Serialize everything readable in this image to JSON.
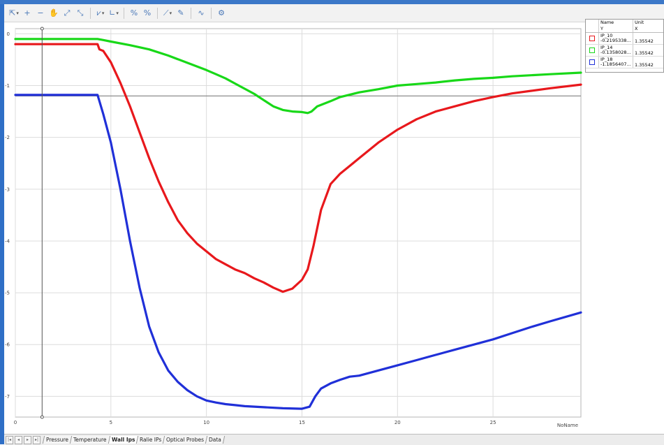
{
  "toolbar": {
    "buttons": [
      {
        "icon": "cursor-select-icon",
        "glyph": "⇱",
        "dropdown": true
      },
      {
        "icon": "zoom-in-icon",
        "glyph": "+"
      },
      {
        "icon": "zoom-out-icon",
        "glyph": "−"
      },
      {
        "icon": "pan-hand-icon",
        "glyph": "✋"
      },
      {
        "icon": "zoom-box-icon",
        "glyph": "⤢"
      },
      {
        "icon": "zoom-extents-icon",
        "glyph": "⤡"
      },
      {
        "icon": "chart-type-icon",
        "glyph": "⩗",
        "dropdown": true
      },
      {
        "icon": "axes-icon",
        "glyph": "∟",
        "dropdown": true
      },
      {
        "icon": "marker-icon",
        "glyph": "%"
      },
      {
        "icon": "marker-remove-icon",
        "glyph": "%"
      },
      {
        "icon": "cursor-line-icon",
        "glyph": "⟋",
        "dropdown": true
      },
      {
        "icon": "cursor-pen-icon",
        "glyph": "✎"
      },
      {
        "icon": "curve-fit-icon",
        "glyph": "∿"
      },
      {
        "icon": "settings-icon",
        "glyph": "⚙"
      }
    ]
  },
  "legend": {
    "headers": {
      "name": "Name",
      "unit": "Unit",
      "y": "Y",
      "x": "X"
    },
    "entries": [
      {
        "name": "IP_10",
        "value": "-0.2195338...",
        "x": "1.35542",
        "color": "#e8181c"
      },
      {
        "name": "IP_14",
        "value": "-0.1358028...",
        "x": "1.35542",
        "color": "#18d818"
      },
      {
        "name": "IP_18",
        "value": "-1.1856407...",
        "x": "1.35542",
        "color": "#2030d8"
      }
    ]
  },
  "tabs": [
    {
      "label": "Pressure",
      "active": false
    },
    {
      "label": "Temperature",
      "active": false
    },
    {
      "label": "Wall Ips",
      "active": true
    },
    {
      "label": "Ralie IPs",
      "active": false
    },
    {
      "label": "Optical Probes",
      "active": false
    },
    {
      "label": "Data",
      "active": false
    }
  ],
  "colors": {
    "grid": "#dcdcdc",
    "zero_line": "#8c8c8c",
    "cursor": "#555555"
  },
  "chart_data": {
    "type": "line",
    "xlim": [
      0,
      29.6
    ],
    "ylim": [
      -7.4,
      0.1
    ],
    "x_ticks": [
      0,
      5,
      10,
      15,
      20,
      25
    ],
    "y_ticks": [
      0,
      -1,
      -2,
      -3,
      -4,
      -5,
      -6,
      -7
    ],
    "xlabel": "NoName",
    "grid": true,
    "cursor_x": 1.4,
    "horizontal_line_y": -1.2,
    "series": [
      {
        "name": "IP_10",
        "color": "#e8181c",
        "x": [
          0,
          4.3,
          4.4,
          4.6,
          5.0,
          5.5,
          6.0,
          6.5,
          7.0,
          7.5,
          8.0,
          8.5,
          9.0,
          9.5,
          10.0,
          10.5,
          11.0,
          11.5,
          12.0,
          12.5,
          13.0,
          13.5,
          14.0,
          14.5,
          15.0,
          15.3,
          15.6,
          16.0,
          16.5,
          17.0,
          17.5,
          18.0,
          19.0,
          20.0,
          21.0,
          22.0,
          23.0,
          24.0,
          25.0,
          26.0,
          27.0,
          28.0,
          29.6
        ],
        "y": [
          -0.2,
          -0.2,
          -0.3,
          -0.33,
          -0.55,
          -0.95,
          -1.4,
          -1.9,
          -2.4,
          -2.85,
          -3.25,
          -3.6,
          -3.85,
          -4.05,
          -4.2,
          -4.35,
          -4.45,
          -4.55,
          -4.62,
          -4.72,
          -4.8,
          -4.9,
          -4.98,
          -4.92,
          -4.75,
          -4.55,
          -4.1,
          -3.4,
          -2.9,
          -2.7,
          -2.55,
          -2.4,
          -2.1,
          -1.85,
          -1.65,
          -1.5,
          -1.4,
          -1.3,
          -1.22,
          -1.15,
          -1.1,
          -1.05,
          -0.98
        ]
      },
      {
        "name": "IP_14",
        "color": "#18d818",
        "x": [
          0,
          4.3,
          4.6,
          5.0,
          6.0,
          7.0,
          8.0,
          9.0,
          10.0,
          10.5,
          11.0,
          11.5,
          12.0,
          12.5,
          13.0,
          13.5,
          14.0,
          14.5,
          15.0,
          15.3,
          15.5,
          15.8,
          16.5,
          17.0,
          18.0,
          19.0,
          20.0,
          21.0,
          22.0,
          23.0,
          24.0,
          25.0,
          26.0,
          27.0,
          28.0,
          29.6
        ],
        "y": [
          -0.1,
          -0.1,
          -0.12,
          -0.15,
          -0.22,
          -0.3,
          -0.42,
          -0.56,
          -0.7,
          -0.78,
          -0.86,
          -0.96,
          -1.06,
          -1.16,
          -1.28,
          -1.4,
          -1.47,
          -1.5,
          -1.51,
          -1.53,
          -1.5,
          -1.4,
          -1.3,
          -1.22,
          -1.13,
          -1.07,
          -1.0,
          -0.97,
          -0.94,
          -0.9,
          -0.87,
          -0.85,
          -0.82,
          -0.8,
          -0.78,
          -0.75
        ]
      },
      {
        "name": "IP_18",
        "color": "#2030d8",
        "x": [
          0,
          4.3,
          4.4,
          4.6,
          5.0,
          5.5,
          6.0,
          6.5,
          7.0,
          7.5,
          8.0,
          8.5,
          9.0,
          9.5,
          10.0,
          10.5,
          11.0,
          11.5,
          12.0,
          13.0,
          14.0,
          15.0,
          15.4,
          15.7,
          16.0,
          16.5,
          17.0,
          17.5,
          18.0,
          19.0,
          20.0,
          21.0,
          22.0,
          23.0,
          24.0,
          25.0,
          26.0,
          27.0,
          28.0,
          29.6
        ],
        "y": [
          -1.18,
          -1.18,
          -1.3,
          -1.55,
          -2.1,
          -3.0,
          -4.0,
          -4.9,
          -5.65,
          -6.15,
          -6.5,
          -6.72,
          -6.88,
          -7.0,
          -7.08,
          -7.12,
          -7.15,
          -7.17,
          -7.19,
          -7.21,
          -7.23,
          -7.24,
          -7.2,
          -7.0,
          -6.85,
          -6.75,
          -6.68,
          -6.62,
          -6.6,
          -6.5,
          -6.4,
          -6.3,
          -6.2,
          -6.1,
          -6.0,
          -5.9,
          -5.78,
          -5.66,
          -5.55,
          -5.38
        ]
      }
    ]
  }
}
